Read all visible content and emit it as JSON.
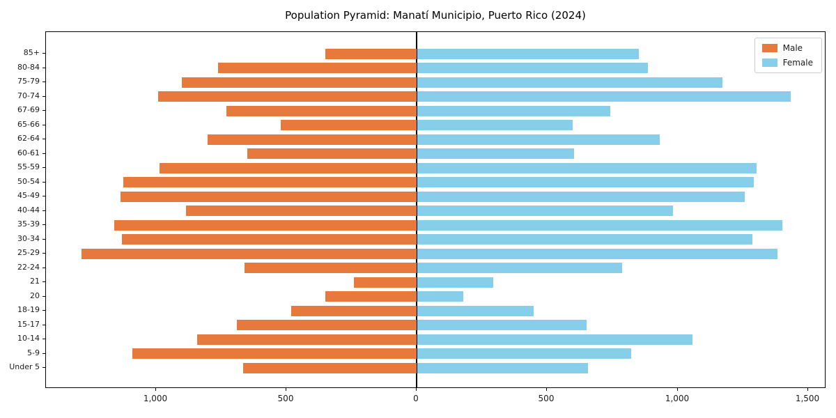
{
  "title": "Population Pyramid: Manatí Municipio, Puerto Rico (2024)",
  "legend": {
    "items": [
      {
        "label": "Male",
        "color": "#e8793d"
      },
      {
        "label": "Female",
        "color": "#87ceeb"
      }
    ]
  },
  "colors": {
    "male": "#e8793d",
    "female": "#87ceeb",
    "axis": "#000000",
    "background": "#ffffff"
  },
  "chart_data": {
    "type": "bar",
    "subtype": "population-pyramid",
    "title": "Population Pyramid: Manatí Municipio, Puerto Rico (2024)",
    "xlabel": "",
    "ylabel": "",
    "grid": false,
    "legend_position": "upper right",
    "categories": [
      "85+",
      "80-84",
      "75-79",
      "70-74",
      "67-69",
      "65-66",
      "62-64",
      "60-61",
      "55-59",
      "50-54",
      "45-49",
      "40-44",
      "35-39",
      "30-34",
      "25-29",
      "22-24",
      "21",
      "20",
      "18-19",
      "15-17",
      "10-14",
      "5-9",
      "Under 5"
    ],
    "series": [
      {
        "name": "Male",
        "side": "left",
        "color": "#e8793d",
        "values": [
          350,
          760,
          900,
          990,
          730,
          520,
          800,
          650,
          985,
          1125,
          1135,
          885,
          1160,
          1130,
          1285,
          660,
          240,
          350,
          480,
          690,
          840,
          1090,
          665
        ]
      },
      {
        "name": "Female",
        "side": "right",
        "color": "#87ceeb",
        "values": [
          850,
          885,
          1170,
          1430,
          740,
          595,
          930,
          600,
          1300,
          1290,
          1255,
          980,
          1400,
          1285,
          1380,
          785,
          290,
          175,
          445,
          650,
          1055,
          820,
          655
        ]
      }
    ],
    "x_ticks": [
      {
        "value": 1000,
        "label": "1,000",
        "side": "left"
      },
      {
        "value": 500,
        "label": "500",
        "side": "left"
      },
      {
        "value": 0,
        "label": "0",
        "side": "center"
      },
      {
        "value": 500,
        "label": "500",
        "side": "right"
      },
      {
        "value": 1000,
        "label": "1,000",
        "side": "right"
      },
      {
        "value": 1500,
        "label": "1,500",
        "side": "right"
      }
    ],
    "xlim_left_max": 1424,
    "xlim_right_max": 1574
  }
}
